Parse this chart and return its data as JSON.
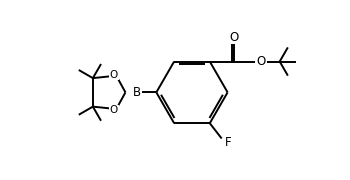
{
  "background_color": "#ffffff",
  "line_color": "#000000",
  "line_width": 1.4,
  "font_size": 7.5,
  "figsize": [
    3.5,
    1.8
  ],
  "dpi": 100,
  "xlim": [
    0,
    10
  ],
  "ylim": [
    0,
    5.14
  ]
}
